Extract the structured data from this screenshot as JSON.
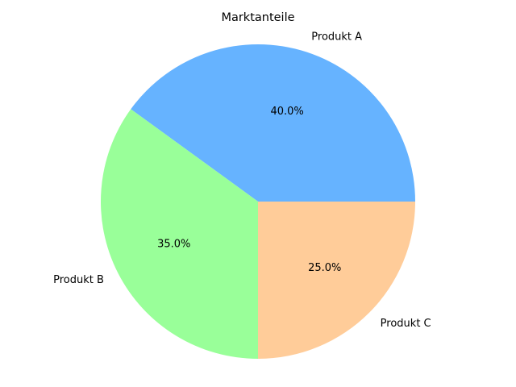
{
  "chart_data": {
    "type": "pie",
    "title": "Marktanteile",
    "categories": [
      "Produkt A",
      "Produkt B",
      "Produkt C"
    ],
    "values": [
      40.0,
      35.0,
      25.0
    ],
    "percent_labels": [
      "40.0%",
      "35.0%",
      "25.0%"
    ],
    "colors": [
      "#66b3ff",
      "#99ff99",
      "#ffcc99"
    ],
    "start_angle_deg": 0,
    "direction": "counterclockwise",
    "legend": "none"
  }
}
